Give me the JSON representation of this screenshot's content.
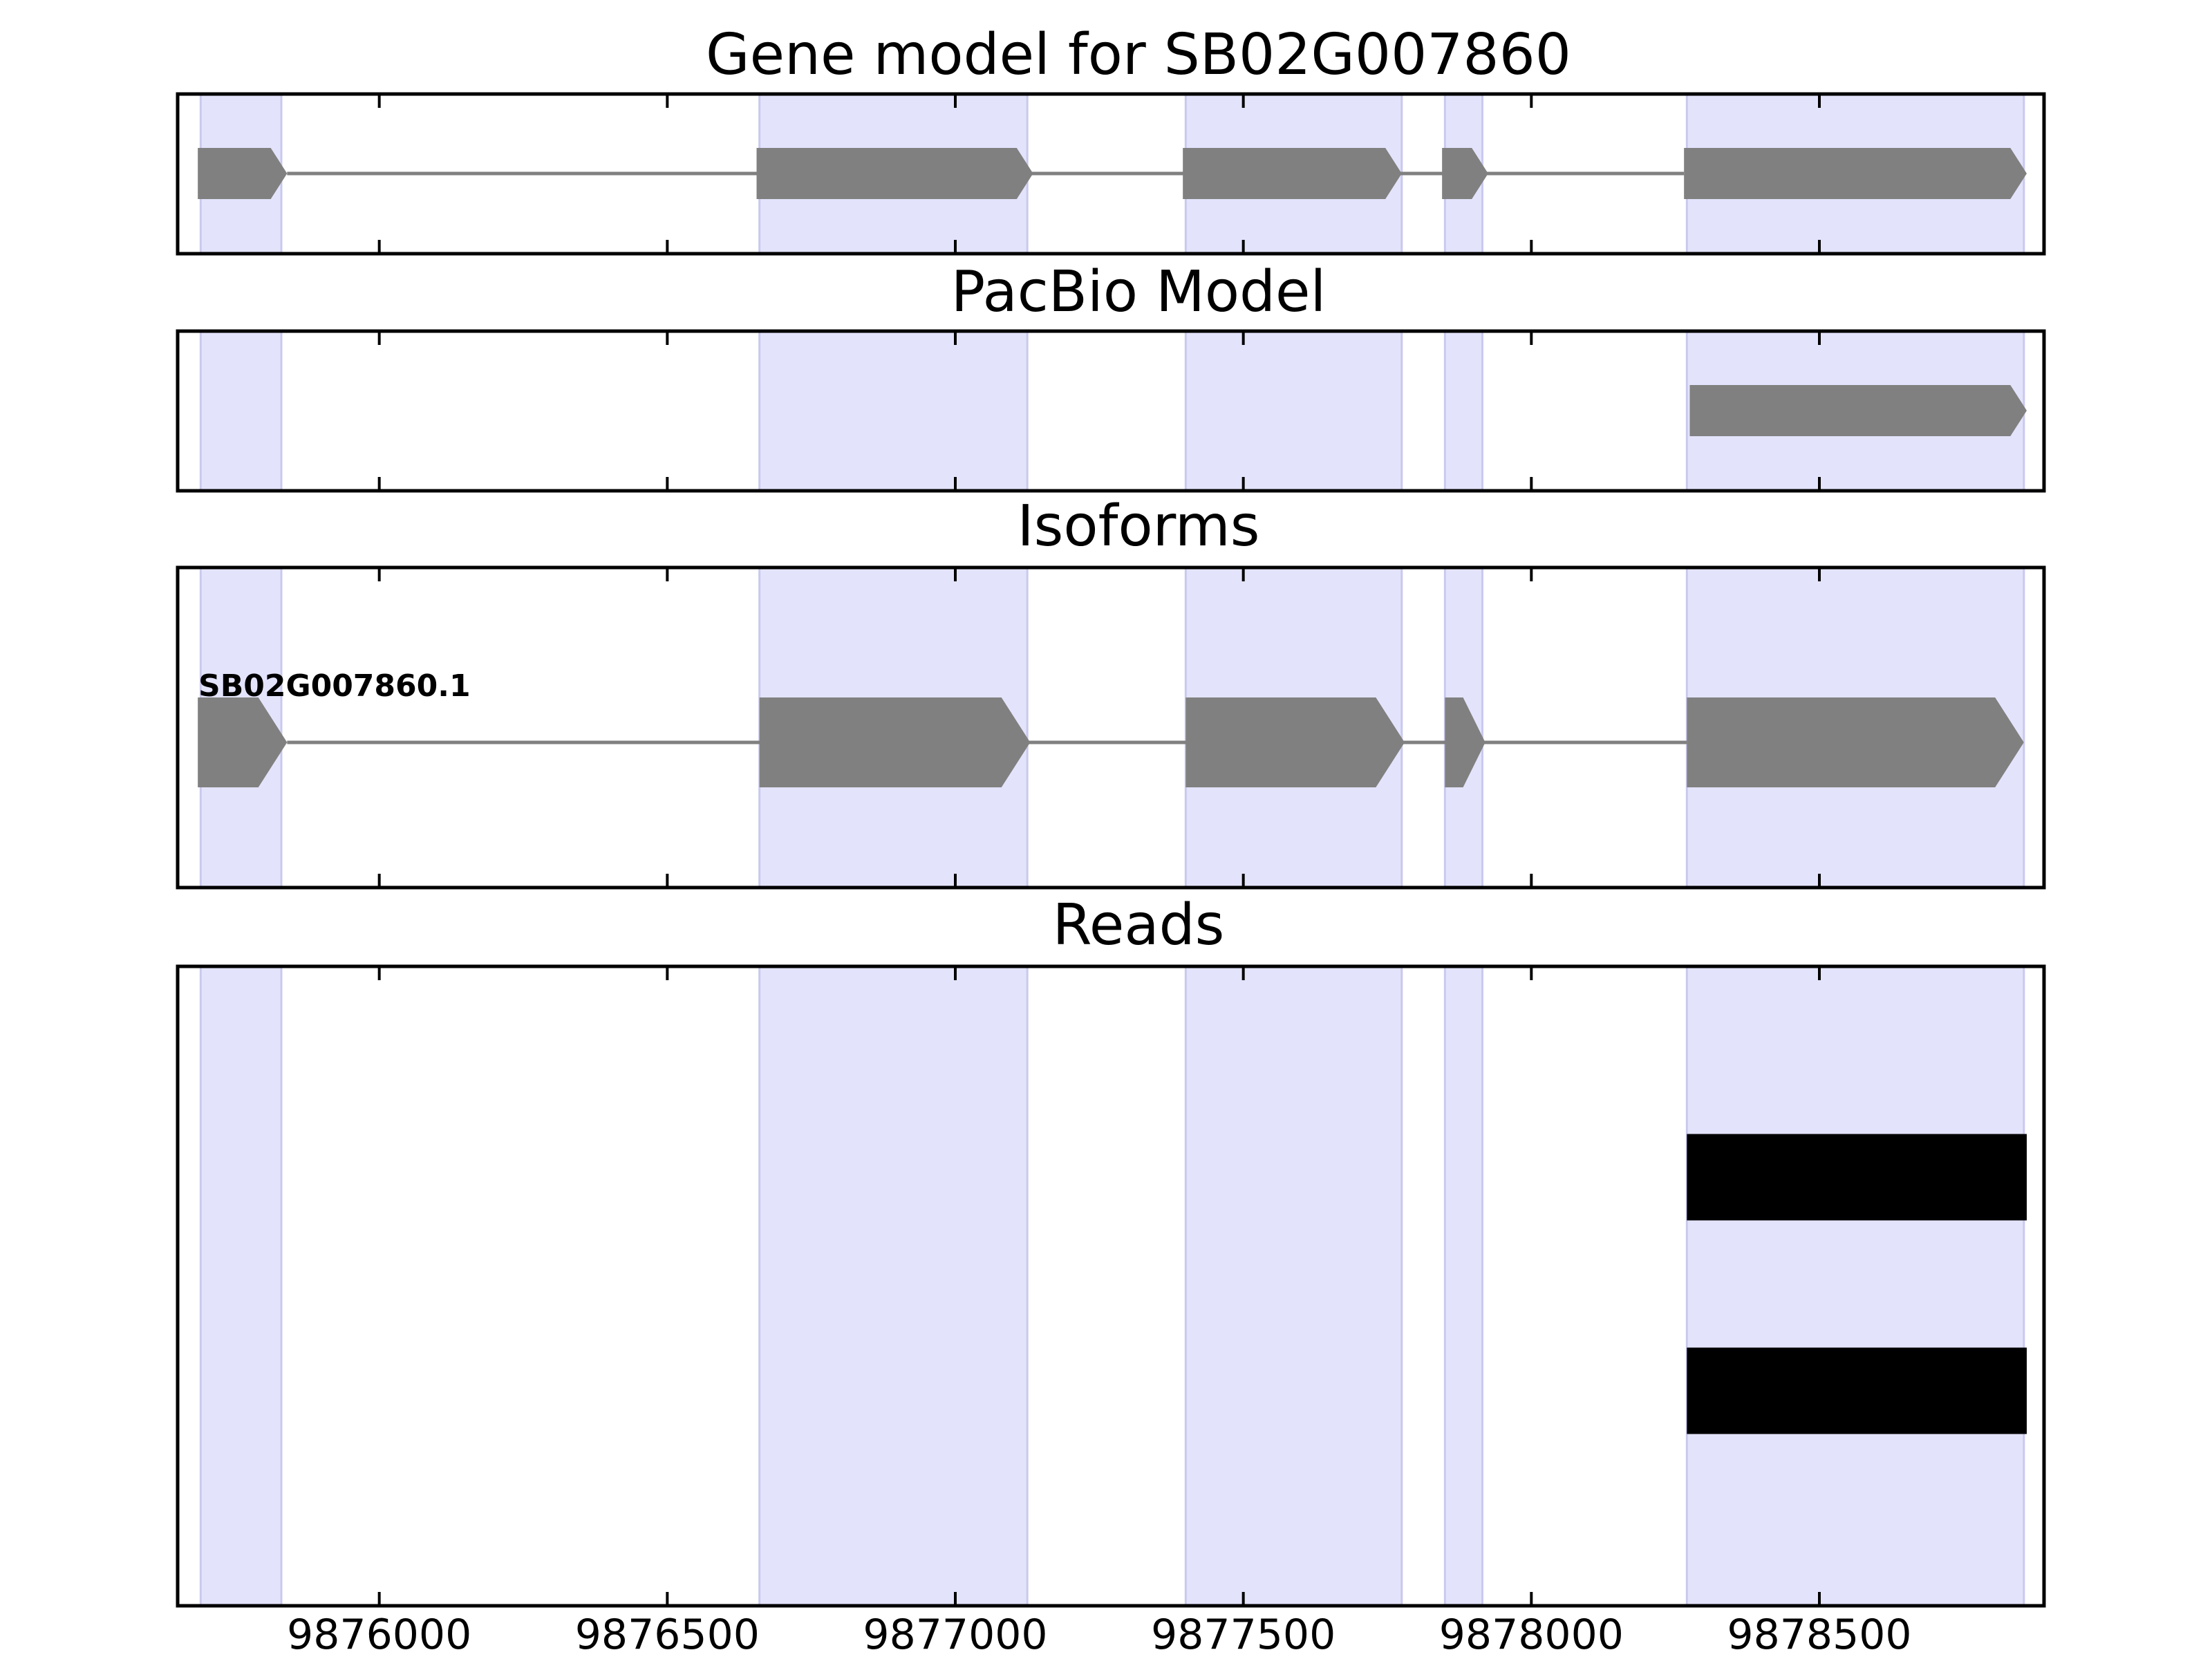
{
  "colors": {
    "exon_shade": "#e3e3fc",
    "exon_shade_edge": "#c9c9ee",
    "feature": "#808080",
    "read": "#000000",
    "frame": "#000000"
  },
  "chart_data": {
    "type": "gene-track",
    "xlim": [
      9875650,
      9878890
    ],
    "xticks": [
      9876000,
      9876500,
      9877000,
      9877500,
      9878000,
      9878500
    ],
    "xtick_labels": [
      "9876000",
      "9876500",
      "9877000",
      "9877500",
      "9878000",
      "9878500"
    ],
    "exon_regions": [
      [
        9875690,
        9875830
      ],
      [
        9876660,
        9877125
      ],
      [
        9877400,
        9877775
      ],
      [
        9877850,
        9877915
      ],
      [
        9878270,
        9878855
      ]
    ],
    "panels": [
      {
        "id": "gene-model",
        "title": "Gene model for SB02G007860",
        "features": [
          {
            "start": 9875685,
            "end": 9875840
          },
          {
            "start": 9876655,
            "end": 9877135
          },
          {
            "start": 9877395,
            "end": 9877775
          },
          {
            "start": 9877845,
            "end": 9877925
          },
          {
            "start": 9878265,
            "end": 9878860
          }
        ]
      },
      {
        "id": "pacbio-model",
        "title": "PacBio Model",
        "features": [
          {
            "start": 9878275,
            "end": 9878860
          }
        ]
      },
      {
        "id": "isoforms",
        "title": "Isoforms",
        "isoform_label": "SB02G007860.1",
        "features": [
          {
            "start": 9875685,
            "end": 9875840
          },
          {
            "start": 9876660,
            "end": 9877130
          },
          {
            "start": 9877400,
            "end": 9877780
          },
          {
            "start": 9877850,
            "end": 9877920
          },
          {
            "start": 9878270,
            "end": 9878855
          }
        ]
      },
      {
        "id": "reads",
        "title": "Reads",
        "reads": [
          {
            "start": 9878270,
            "end": 9878860
          },
          {
            "start": 9878270,
            "end": 9878860
          }
        ]
      }
    ]
  }
}
